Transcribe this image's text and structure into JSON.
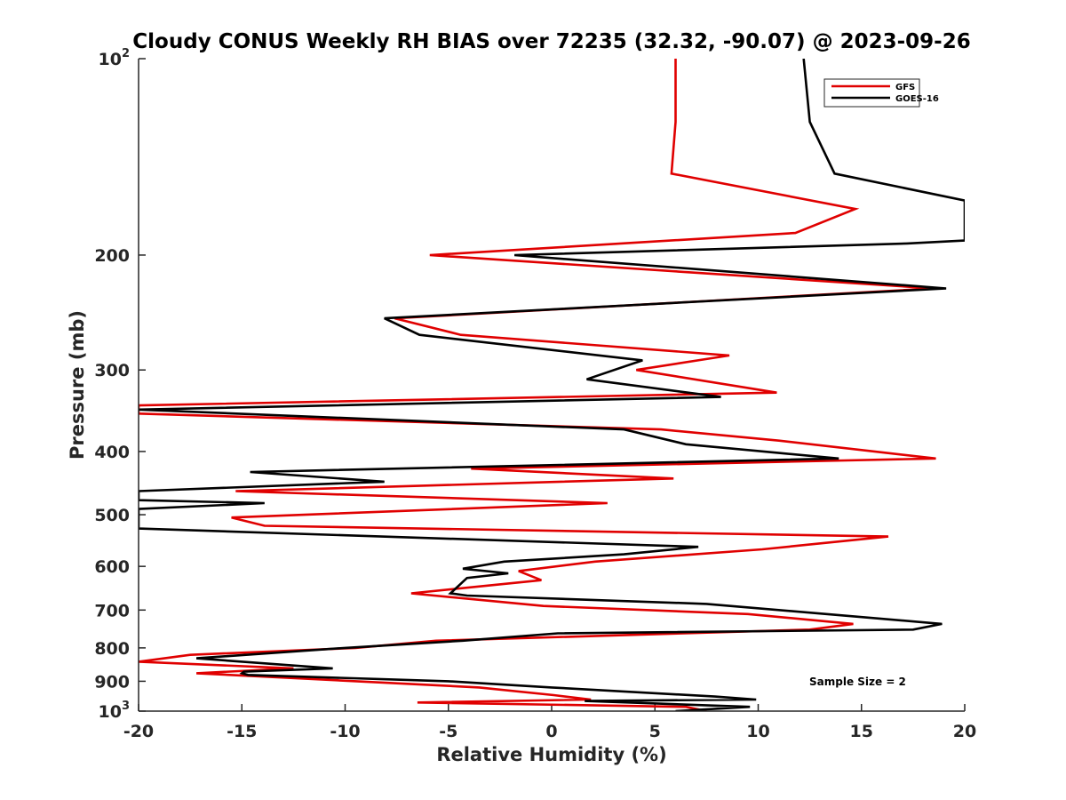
{
  "chart_data": {
    "type": "line",
    "title": "Cloudy CONUS Weekly RH BIAS over 72235 (32.32, -90.07) @ 2023-09-26",
    "xlabel": "Relative Humidity (%)",
    "ylabel": "Pressure (mb)",
    "xlim": [
      -20,
      20
    ],
    "ylim": [
      100,
      1000
    ],
    "yscale": "log",
    "y_reversed": true,
    "x_ticks": [
      -20,
      -15,
      -10,
      -5,
      0,
      5,
      10,
      15,
      20
    ],
    "x_tick_labels": [
      "-20",
      "-15",
      "-10",
      "-5",
      "0",
      "5",
      "10",
      "15",
      "20"
    ],
    "y_ticks": [
      100,
      200,
      300,
      400,
      500,
      600,
      700,
      800,
      900,
      1000
    ],
    "y_tick_labels": [
      {
        "base": "10",
        "exp": "2"
      },
      {
        "base": "200",
        "exp": ""
      },
      {
        "base": "300",
        "exp": ""
      },
      {
        "base": "400",
        "exp": ""
      },
      {
        "base": "500",
        "exp": ""
      },
      {
        "base": "600",
        "exp": ""
      },
      {
        "base": "700",
        "exp": ""
      },
      {
        "base": "800",
        "exp": ""
      },
      {
        "base": "900",
        "exp": ""
      },
      {
        "base": "10",
        "exp": "3"
      }
    ],
    "legend_position": "top-right",
    "annotation": "Sample Size = 2",
    "series": [
      {
        "name": "GFS",
        "color": "#e00000",
        "points": [
          [
            6.0,
            100
          ],
          [
            6.0,
            125
          ],
          [
            5.8,
            150
          ],
          [
            14.7,
            170
          ],
          [
            11.8,
            185
          ],
          [
            -5.9,
            200
          ],
          [
            18.5,
            225
          ],
          [
            -7.6,
            250
          ],
          [
            -4.4,
            265
          ],
          [
            8.6,
            285
          ],
          [
            4.1,
            300
          ],
          [
            10.9,
            325
          ],
          [
            -20.0,
            340
          ],
          [
            -20.0,
            350
          ],
          [
            5.3,
            370
          ],
          [
            11.0,
            385
          ],
          [
            18.6,
            410
          ],
          [
            -3.9,
            425
          ],
          [
            5.9,
            440
          ],
          [
            -15.3,
            460
          ],
          [
            2.7,
            480
          ],
          [
            -15.5,
            505
          ],
          [
            -13.9,
            520
          ],
          [
            16.3,
            540
          ],
          [
            10.2,
            565
          ],
          [
            2.1,
            590
          ],
          [
            -1.6,
            610
          ],
          [
            -0.5,
            630
          ],
          [
            -6.8,
            660
          ],
          [
            -0.4,
            690
          ],
          [
            9.5,
            710
          ],
          [
            14.6,
            735
          ],
          [
            12.5,
            750
          ],
          [
            -5.6,
            780
          ],
          [
            -9.5,
            800
          ],
          [
            -17.5,
            820
          ],
          [
            -20.0,
            840
          ],
          [
            -12.5,
            860
          ],
          [
            -17.2,
            875
          ],
          [
            -3.5,
            920
          ],
          [
            0.1,
            945
          ],
          [
            1.9,
            960
          ],
          [
            -6.5,
            970
          ],
          [
            6.5,
            985
          ],
          [
            7.5,
            1000
          ]
        ]
      },
      {
        "name": "GOES-16",
        "color": "#000000",
        "points": [
          [
            12.2,
            100
          ],
          [
            12.5,
            125
          ],
          [
            13.7,
            150
          ],
          [
            20.0,
            165
          ],
          [
            20.0,
            190
          ],
          [
            17.2,
            192
          ],
          [
            -1.8,
            200
          ],
          [
            19.1,
            225
          ],
          [
            -8.1,
            250
          ],
          [
            -6.4,
            265
          ],
          [
            4.4,
            290
          ],
          [
            1.7,
            310
          ],
          [
            8.2,
            330
          ],
          [
            -20.0,
            345
          ],
          [
            3.5,
            370
          ],
          [
            6.5,
            390
          ],
          [
            13.9,
            410
          ],
          [
            -14.6,
            430
          ],
          [
            -8.1,
            445
          ],
          [
            -20.0,
            460
          ],
          [
            -20.0,
            475
          ],
          [
            -13.9,
            480
          ],
          [
            -20.0,
            490
          ],
          [
            -20.0,
            525
          ],
          [
            7.1,
            560
          ],
          [
            3.5,
            575
          ],
          [
            -2.3,
            590
          ],
          [
            -4.3,
            605
          ],
          [
            -2.1,
            615
          ],
          [
            -4.1,
            625
          ],
          [
            -4.9,
            660
          ],
          [
            -4.1,
            665
          ],
          [
            7.5,
            685
          ],
          [
            13.3,
            710
          ],
          [
            18.9,
            735
          ],
          [
            17.5,
            750
          ],
          [
            0.3,
            760
          ],
          [
            -4.3,
            780
          ],
          [
            -10.0,
            800
          ],
          [
            -17.2,
            830
          ],
          [
            -10.6,
            860
          ],
          [
            -14.9,
            870
          ],
          [
            -15.0,
            875
          ],
          [
            -14.7,
            880
          ],
          [
            -5.0,
            900
          ],
          [
            0.0,
            920
          ],
          [
            7.9,
            950
          ],
          [
            9.9,
            960
          ],
          [
            1.6,
            965
          ],
          [
            9.6,
            985
          ],
          [
            6.0,
            1000
          ]
        ]
      }
    ]
  }
}
